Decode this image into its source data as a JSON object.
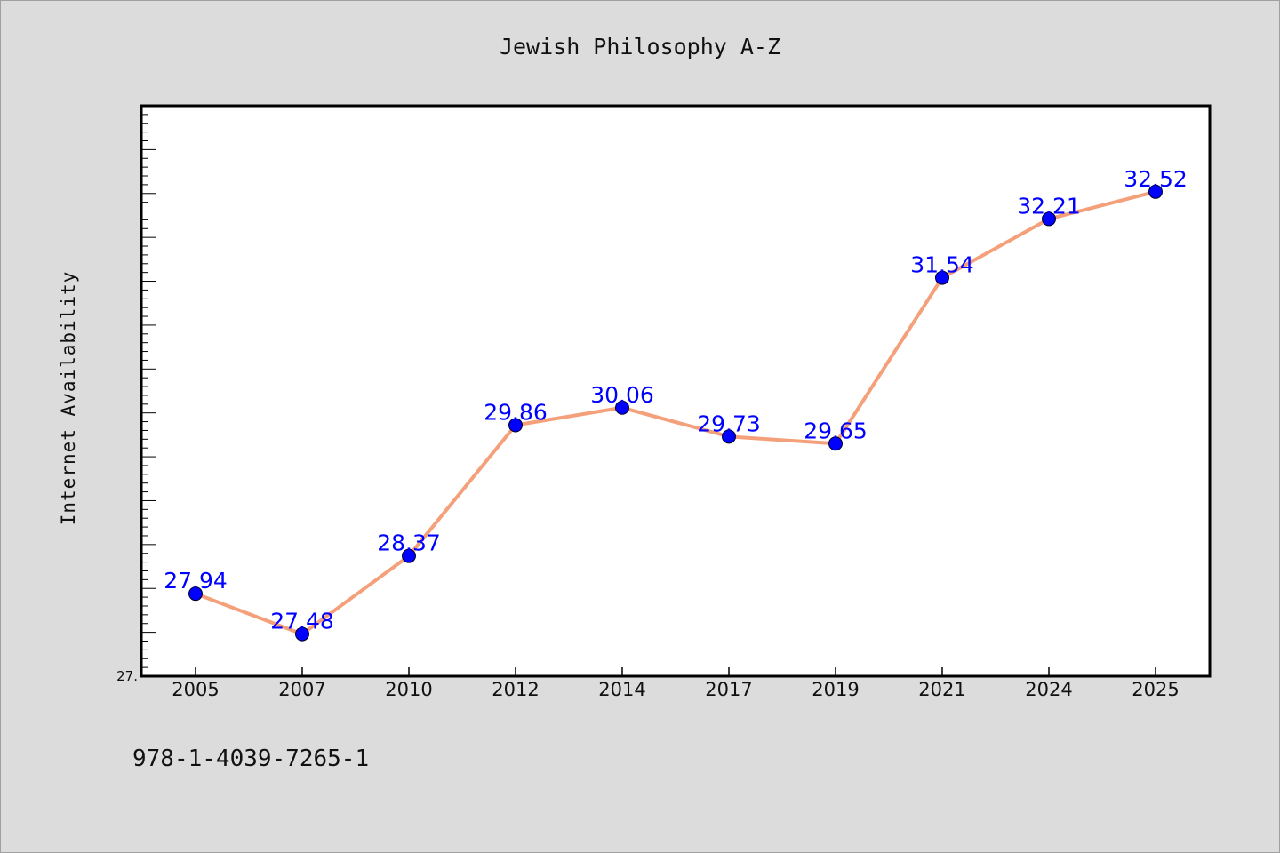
{
  "chart_data": {
    "type": "line",
    "title": "Jewish Philosophy A-Z",
    "xlabel": "",
    "ylabel": "Internet Availability",
    "categories": [
      "2005",
      "2007",
      "2010",
      "2012",
      "2014",
      "2017",
      "2019",
      "2021",
      "2024",
      "2025"
    ],
    "series": [
      {
        "values": [
          27.94,
          27.48,
          28.37,
          29.86,
          30.06,
          29.73,
          29.65,
          31.54,
          32.21,
          32.52
        ],
        "line_color": "#f4a07a",
        "marker_color": "#0000ff"
      }
    ],
    "data_labels": [
      "27.94",
      "27.48",
      "28.37",
      "29.86",
      "30.06",
      "29.73",
      "29.65",
      "31.54",
      "32.21",
      "32.52"
    ],
    "ylim": [
      27.0,
      33.5
    ],
    "y_tick_labels": [
      "27."
    ],
    "grid": false,
    "legend": "none"
  },
  "footer": {
    "isbn": "978-1-4039-7265-1"
  },
  "colors": {
    "background": "#dcdcdc",
    "plot_background": "#ffffff",
    "line": "#f4a07a",
    "marker": "#0000ff",
    "data_label": "#0000ff"
  }
}
